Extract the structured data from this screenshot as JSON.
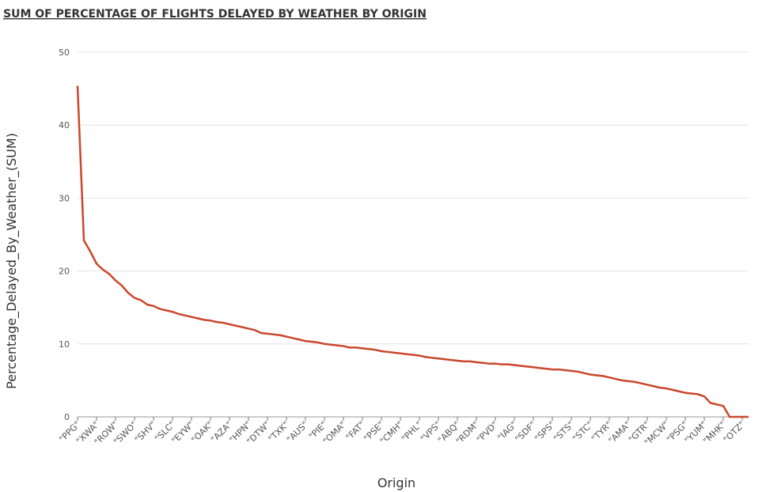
{
  "chart_data": {
    "type": "line",
    "title": "SUM OF PERCENTAGE OF FLIGHTS DELAYED BY WEATHER BY ORIGIN",
    "x_label": "Origin",
    "y_label": "Percentage_Delayed_By_Weather_(SUM)",
    "categories": [
      "\"PPG\"",
      null,
      null,
      "\"XWA\"",
      null,
      null,
      "\"ROW\"",
      null,
      null,
      "\"SWO\"",
      null,
      null,
      "\"SHV\"",
      null,
      null,
      "\"SLC\"",
      null,
      null,
      "\"EYW\"",
      null,
      null,
      "\"OAK\"",
      null,
      null,
      "\"AZA\"",
      null,
      null,
      "\"HPN\"",
      null,
      null,
      "\"DTW\"",
      null,
      null,
      "\"TXK\"",
      null,
      null,
      "\"AUS\"",
      null,
      null,
      "\"PIE\"",
      null,
      null,
      "\"OMA\"",
      null,
      null,
      "\"FAT\"",
      null,
      null,
      "\"PSE\"",
      null,
      null,
      "\"CMH\"",
      null,
      null,
      "\"PHL\"",
      null,
      null,
      "\"VPS\"",
      null,
      null,
      "\"ABQ\"",
      null,
      null,
      "\"RDM\"",
      null,
      null,
      "\"PVD\"",
      null,
      null,
      "\"IAG\"",
      null,
      null,
      "\"SDF\"",
      null,
      null,
      "\"SPS\"",
      null,
      null,
      "\"STS\"",
      null,
      null,
      "\"STC\"",
      null,
      null,
      "\"TYR\"",
      null,
      null,
      "\"AMA\"",
      null,
      null,
      "\"GTR\"",
      null,
      null,
      "\"MCW\"",
      null,
      null,
      "\"PSG\"",
      null,
      null,
      "\"YUM\"",
      null,
      null,
      "\"MHK\"",
      null,
      null,
      "\"OTZ\"",
      null
    ],
    "series": [
      {
        "name": "Percentage_Delayed_By_Weather_(SUM)",
        "color": "#c9472b",
        "values": [
          45.4,
          24.2,
          22.7,
          21,
          20.2,
          19.6,
          18.7,
          18.0,
          17.0,
          16.3,
          16.0,
          15.4,
          15.2,
          14.8,
          14.6,
          14.4,
          14.1,
          13.9,
          13.7,
          13.5,
          13.3,
          13.2,
          13.0,
          12.9,
          12.7,
          12.5,
          12.3,
          12.1,
          11.9,
          11.5,
          11.4,
          11.3,
          11.2,
          11.0,
          10.8,
          10.6,
          10.4,
          10.3,
          10.2,
          10.0,
          9.9,
          9.8,
          9.7,
          9.5,
          9.5,
          9.4,
          9.3,
          9.2,
          9.0,
          8.9,
          8.8,
          8.7,
          8.6,
          8.5,
          8.4,
          8.2,
          8.1,
          8.0,
          7.9,
          7.8,
          7.7,
          7.6,
          7.6,
          7.5,
          7.4,
          7.3,
          7.3,
          7.2,
          7.2,
          7.1,
          7.0,
          6.9,
          6.8,
          6.7,
          6.6,
          6.5,
          6.5,
          6.4,
          6.3,
          6.2,
          6.0,
          5.8,
          5.7,
          5.6,
          5.4,
          5.2,
          5.0,
          4.9,
          4.8,
          4.6,
          4.4,
          4.2,
          4.0,
          3.9,
          3.7,
          3.5,
          3.3,
          3.2,
          3.1,
          2.8,
          1.9,
          1.7,
          1.5,
          0,
          0,
          0,
          0
        ]
      }
    ],
    "ylim": [
      0,
      50
    ],
    "yticks": [
      0,
      10,
      20,
      30,
      40,
      50
    ],
    "grid": true
  }
}
